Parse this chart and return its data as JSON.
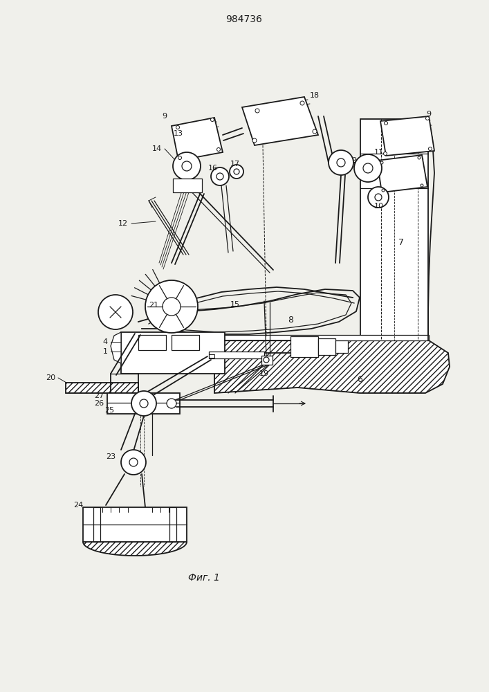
{
  "title": "984736",
  "caption": "Фиг. 1",
  "bg_color": "#f0f0eb",
  "line_color": "#1a1a1a",
  "title_fontsize": 10,
  "caption_fontsize": 10
}
